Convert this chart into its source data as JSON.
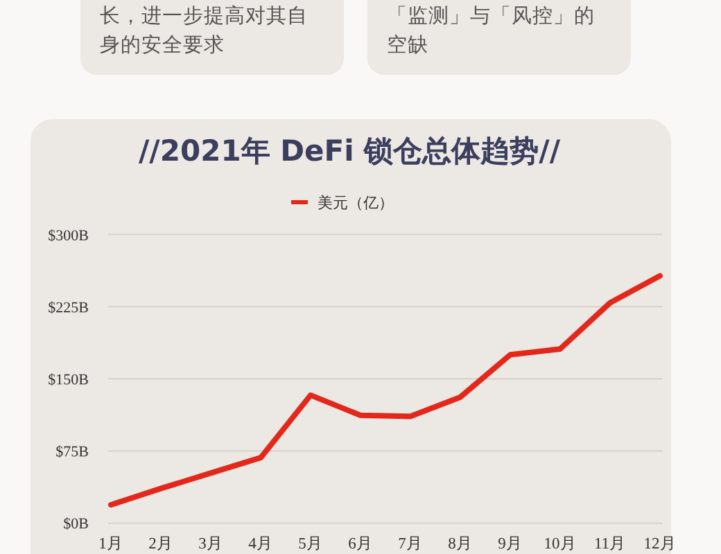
{
  "chart_data": {
    "type": "line",
    "title": "//2021年 DeFi 锁仓总体趋势//",
    "categories": [
      "1月",
      "2月",
      "3月",
      "4月",
      "5月",
      "6月",
      "7月",
      "8月",
      "9月",
      "10月",
      "11月",
      "12月"
    ],
    "series": [
      {
        "name": "美元（亿）",
        "color": "#e3281b",
        "values": [
          19,
          36,
          52,
          68,
          133,
          112,
          111,
          131,
          175,
          181,
          229,
          257
        ]
      }
    ],
    "ylim": [
      0,
      300
    ],
    "yticks": [
      {
        "value": 0,
        "label": "$0B"
      },
      {
        "value": 75,
        "label": "$75B"
      },
      {
        "value": 150,
        "label": "$150B"
      },
      {
        "value": 225,
        "label": "$225B"
      },
      {
        "value": 300,
        "label": "$300B"
      }
    ],
    "grid": "y",
    "legend": "top",
    "marker": "none",
    "line_style": "solid",
    "annotations": [
      "长，进一步提高对其自身的安全要求",
      "「监测」与「风控」的空缺"
    ]
  }
}
